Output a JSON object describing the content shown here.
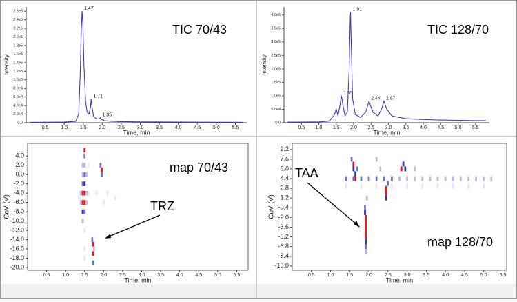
{
  "chart_data": [
    {
      "type": "line",
      "label": "TIC 70/43",
      "xlabel": "Time, min",
      "ylabel": "Intensity",
      "color": "#3a3ac8",
      "xlim": [
        0,
        5.8
      ],
      "ylim": [
        0,
        270000
      ],
      "xticks": [
        0.5,
        {
          "value": 1,
          "label": "1.0"
        },
        1.5,
        {
          "value": 2,
          "label": "2.0"
        },
        2.5,
        {
          "value": 3,
          "label": "3.0"
        },
        3.5,
        {
          "value": 4,
          "label": "4.0"
        },
        4.5,
        {
          "value": 5,
          "label": "5.0"
        },
        5.5
      ],
      "yticks": [
        {
          "value": 0,
          "label": "0.0"
        },
        {
          "value": 20000,
          "label": "2.0e4"
        },
        {
          "value": 40000,
          "label": "4.0e4"
        },
        {
          "value": 60000,
          "label": "6.0e4"
        },
        {
          "value": 80000,
          "label": "8.0e4"
        },
        {
          "value": 100000,
          "label": "1.0e5"
        },
        {
          "value": 120000,
          "label": "1.2e5"
        },
        {
          "value": 140000,
          "label": "1.4e5"
        },
        {
          "value": 160000,
          "label": "1.6e5"
        },
        {
          "value": 180000,
          "label": "1.8e5"
        },
        {
          "value": 200000,
          "label": "2.0e5"
        },
        {
          "value": 220000,
          "label": "2.2e5"
        },
        {
          "value": 240000,
          "label": "2.4e5"
        },
        {
          "value": 260000,
          "label": "2.6e5"
        }
      ],
      "x": [
        0.1,
        0.5,
        1.0,
        1.3,
        1.38,
        1.42,
        1.45,
        1.47,
        1.49,
        1.52,
        1.56,
        1.6,
        1.65,
        1.69,
        1.71,
        1.73,
        1.77,
        1.85,
        1.92,
        1.95,
        1.98,
        2.05,
        2.2,
        2.5,
        3,
        3.5,
        4,
        4.5,
        5,
        5.5,
        5.7
      ],
      "values": [
        1000,
        1200,
        1500,
        3000,
        20000,
        110000,
        220000,
        260000,
        230000,
        130000,
        50000,
        25000,
        20000,
        35000,
        55000,
        38000,
        15000,
        9000,
        9000,
        12000,
        8000,
        5000,
        3500,
        2500,
        2000,
        1800,
        1500,
        1300,
        1200,
        1100,
        1000
      ],
      "peaks": [
        {
          "x": 1.47,
          "y": 260000
        },
        {
          "x": 1.71,
          "y": 55000
        },
        {
          "x": 1.95,
          "y": 12000
        }
      ]
    },
    {
      "type": "line",
      "label": "TIC 128/70",
      "xlabel": "Time, min",
      "ylabel": "Intensity",
      "color": "#3a3ac8",
      "xlim": [
        0,
        5.9
      ],
      "ylim": [
        0,
        430000
      ],
      "xticks": [
        0.5,
        {
          "value": 1,
          "label": "1.0"
        },
        1.5,
        {
          "value": 2,
          "label": "2.0"
        },
        2.5,
        {
          "value": 3,
          "label": "3.0"
        },
        3.5,
        {
          "value": 4,
          "label": "4.0"
        },
        4.5,
        {
          "value": 5,
          "label": "5.0"
        },
        5.5
      ],
      "yticks": [
        {
          "value": 0,
          "label": "0.0"
        },
        {
          "value": 50000,
          "label": "5.0e4"
        },
        {
          "value": 100000,
          "label": "1.0e5"
        },
        {
          "value": 150000,
          "label": "1.5e5"
        },
        {
          "value": 200000,
          "label": "2.0e5"
        },
        {
          "value": 250000,
          "label": "2.5e5"
        },
        {
          "value": 300000,
          "label": "3.0e5"
        },
        {
          "value": 350000,
          "label": "3.5e5"
        },
        {
          "value": 400000,
          "label": "4.0e5"
        }
      ],
      "x": [
        0.1,
        0.5,
        1.0,
        1.3,
        1.45,
        1.5,
        1.55,
        1.6,
        1.65,
        1.7,
        1.75,
        1.82,
        1.87,
        1.9,
        1.91,
        1.93,
        1.97,
        2.05,
        2.2,
        2.35,
        2.44,
        2.55,
        2.7,
        2.8,
        2.87,
        2.95,
        3.1,
        3.5,
        4,
        4.5,
        5,
        5.5,
        5.8
      ],
      "values": [
        2000,
        2500,
        3000,
        6000,
        30000,
        50000,
        25000,
        60000,
        100000,
        60000,
        25000,
        40000,
        200000,
        380000,
        410000,
        300000,
        90000,
        30000,
        20000,
        40000,
        80000,
        40000,
        25000,
        50000,
        80000,
        50000,
        25000,
        15000,
        12000,
        10000,
        9000,
        8000,
        8000
      ],
      "peaks": [
        {
          "x": 1.91,
          "y": 410000
        },
        {
          "x": 1.65,
          "y": 100000
        },
        {
          "x": 2.44,
          "y": 80000
        },
        {
          "x": 2.87,
          "y": 80000
        }
      ]
    },
    {
      "type": "heatmap",
      "label": "map 70/43",
      "annotation": "TRZ",
      "xlabel": "Time, min",
      "ylabel": "CoV (V)",
      "colorscale": [
        "#e6e7f6",
        "#b7bbe2",
        "#6c74c6",
        "#28359c",
        "#e5191b"
      ],
      "xlim": [
        0,
        5.8
      ],
      "ylim": [
        -20.6,
        6.7
      ],
      "xticks": [
        0.5,
        {
          "value": 1,
          "label": "1.0"
        },
        1.5,
        {
          "value": 2,
          "label": "2.0"
        },
        2.5,
        {
          "value": 3,
          "label": "3.0"
        },
        3.5,
        {
          "value": 4,
          "label": "4.0"
        },
        4.5,
        {
          "value": 5,
          "label": "5.0"
        },
        5.5
      ],
      "yticks": [
        {
          "value": 4,
          "label": "4.0"
        },
        {
          "value": 2,
          "label": "2.0"
        },
        {
          "value": 0,
          "label": "0.0"
        },
        {
          "value": -2,
          "label": "-2.0"
        },
        {
          "value": -4,
          "label": "-4.0"
        },
        {
          "value": -6,
          "label": "-6.0"
        },
        {
          "value": -8,
          "label": "-8.0"
        },
        {
          "value": -10,
          "label": "-10.0"
        },
        {
          "value": -12,
          "label": "-12.0"
        },
        {
          "value": -14,
          "label": "-14.0"
        },
        {
          "value": -16,
          "label": "-16.0"
        },
        {
          "value": -18,
          "label": "-18.0"
        },
        {
          "value": -20,
          "label": "-20.0"
        }
      ],
      "cells": {
        "x": [
          1.45,
          1.45,
          1.45,
          1.45,
          1.45,
          1.45,
          1.45,
          1.5,
          1.5,
          1.5,
          1.5,
          1.5,
          1.5,
          1.5,
          1.5,
          1.5,
          1.5,
          1.55,
          1.55,
          1.55,
          1.6,
          1.6,
          1.7,
          1.72,
          1.72,
          1.72,
          1.75,
          1.92,
          1.95,
          1.95,
          1.4,
          1.4,
          1.35,
          1.8,
          2.1,
          2.3,
          2.0,
          1.5
        ],
        "y": [
          2,
          0,
          -2,
          -4,
          -6,
          -8,
          -10,
          4,
          2,
          0,
          -2,
          -4,
          -6,
          -8,
          -12,
          -16,
          -18,
          0,
          -4,
          -6,
          -4,
          2,
          -14,
          -15,
          -17,
          -19,
          -16,
          2,
          1,
          0,
          -4,
          -6,
          -5,
          -4,
          -4,
          -5,
          -6,
          5.2
        ],
        "values": [
          2,
          2,
          3,
          5,
          5,
          4,
          2,
          3,
          2,
          3,
          4,
          5,
          5,
          3,
          1,
          1,
          1,
          2,
          2,
          2,
          1,
          1,
          3,
          5,
          5,
          3,
          2,
          3,
          5,
          3,
          2,
          2,
          1,
          1,
          1,
          1,
          1,
          5
        ]
      }
    },
    {
      "type": "heatmap",
      "label": "map 128/70",
      "annotation": "TAA",
      "xlabel": "Time, min",
      "ylabel": "CoV (V)",
      "colorscale": [
        "#e6e7f6",
        "#b7bbe2",
        "#6c74c6",
        "#28359c",
        "#e5191b"
      ],
      "xlim": [
        0,
        5.6
      ],
      "ylim": [
        -10.7,
        10.2
      ],
      "xticks": [
        0.5,
        {
          "value": 1,
          "label": "1.0"
        },
        1.5,
        {
          "value": 2,
          "label": "2.0"
        },
        2.5,
        {
          "value": 3,
          "label": "3.0"
        },
        3.5,
        {
          "value": 4,
          "label": "4.0"
        },
        4.5,
        {
          "value": 5,
          "label": "5.0"
        },
        5.5
      ],
      "yticks": [
        9.2,
        7.6,
        {
          "value": 6,
          "label": "6.0"
        },
        4.4,
        2.8,
        1.2,
        -0.4,
        {
          "value": -2,
          "label": "-2.0"
        },
        -3.6,
        -5.2,
        -6.8,
        -8.4,
        {
          "value": -10,
          "label": "-10.0"
        }
      ],
      "cells": {
        "x": [
          1.55,
          1.6,
          1.6,
          1.65,
          1.65,
          1.7,
          1.9,
          1.9,
          1.92,
          1.92,
          1.92,
          1.92,
          1.92,
          1.92,
          1.92,
          1.92,
          1.95,
          2.45,
          2.45,
          2.45,
          2.5,
          2.85,
          2.9,
          2.95,
          2.3,
          2.2,
          3.2,
          1.4,
          1.6,
          1.8,
          2.0,
          2.2,
          2.4,
          2.6,
          2.8,
          3.0,
          3.2,
          3.4,
          3.6,
          3.8,
          4.0,
          4.2,
          4.4,
          4.6,
          4.8,
          5.0,
          5.2,
          1.4,
          1.8,
          2.2,
          2.6,
          3.0,
          3.4,
          3.8,
          4.2,
          4.6,
          5.0
        ],
        "y": [
          7.6,
          6.8,
          6,
          5.2,
          4.4,
          6,
          -0.4,
          -1.2,
          -2,
          -2.8,
          -3.6,
          -4.4,
          -5.2,
          -6,
          -6.8,
          -7.6,
          1.2,
          2.8,
          2,
          1.2,
          3.6,
          6,
          6.8,
          6,
          6,
          7.6,
          6,
          4.4,
          4.4,
          4.4,
          4.4,
          4.4,
          4.4,
          4.4,
          4.4,
          4.4,
          4.4,
          4.4,
          4.4,
          4.4,
          4.4,
          4.4,
          4.4,
          4.4,
          4.4,
          4.4,
          4.4,
          3.2,
          3.2,
          3.2,
          3.2,
          3.2,
          3.2,
          3.2,
          3.2,
          3.2,
          3.2
        ],
        "values": [
          3,
          5,
          4,
          4,
          5,
          3,
          3,
          4,
          5,
          5,
          5,
          5,
          5,
          4,
          3,
          2,
          2,
          5,
          5,
          4,
          3,
          5,
          4,
          4,
          2,
          2,
          2,
          3,
          3,
          3,
          3,
          3,
          3,
          3,
          2,
          2,
          2,
          2,
          2,
          2,
          2,
          2,
          2,
          2,
          2,
          2,
          2,
          1,
          1,
          1,
          1,
          1,
          1,
          1,
          1,
          1,
          1
        ]
      }
    }
  ]
}
